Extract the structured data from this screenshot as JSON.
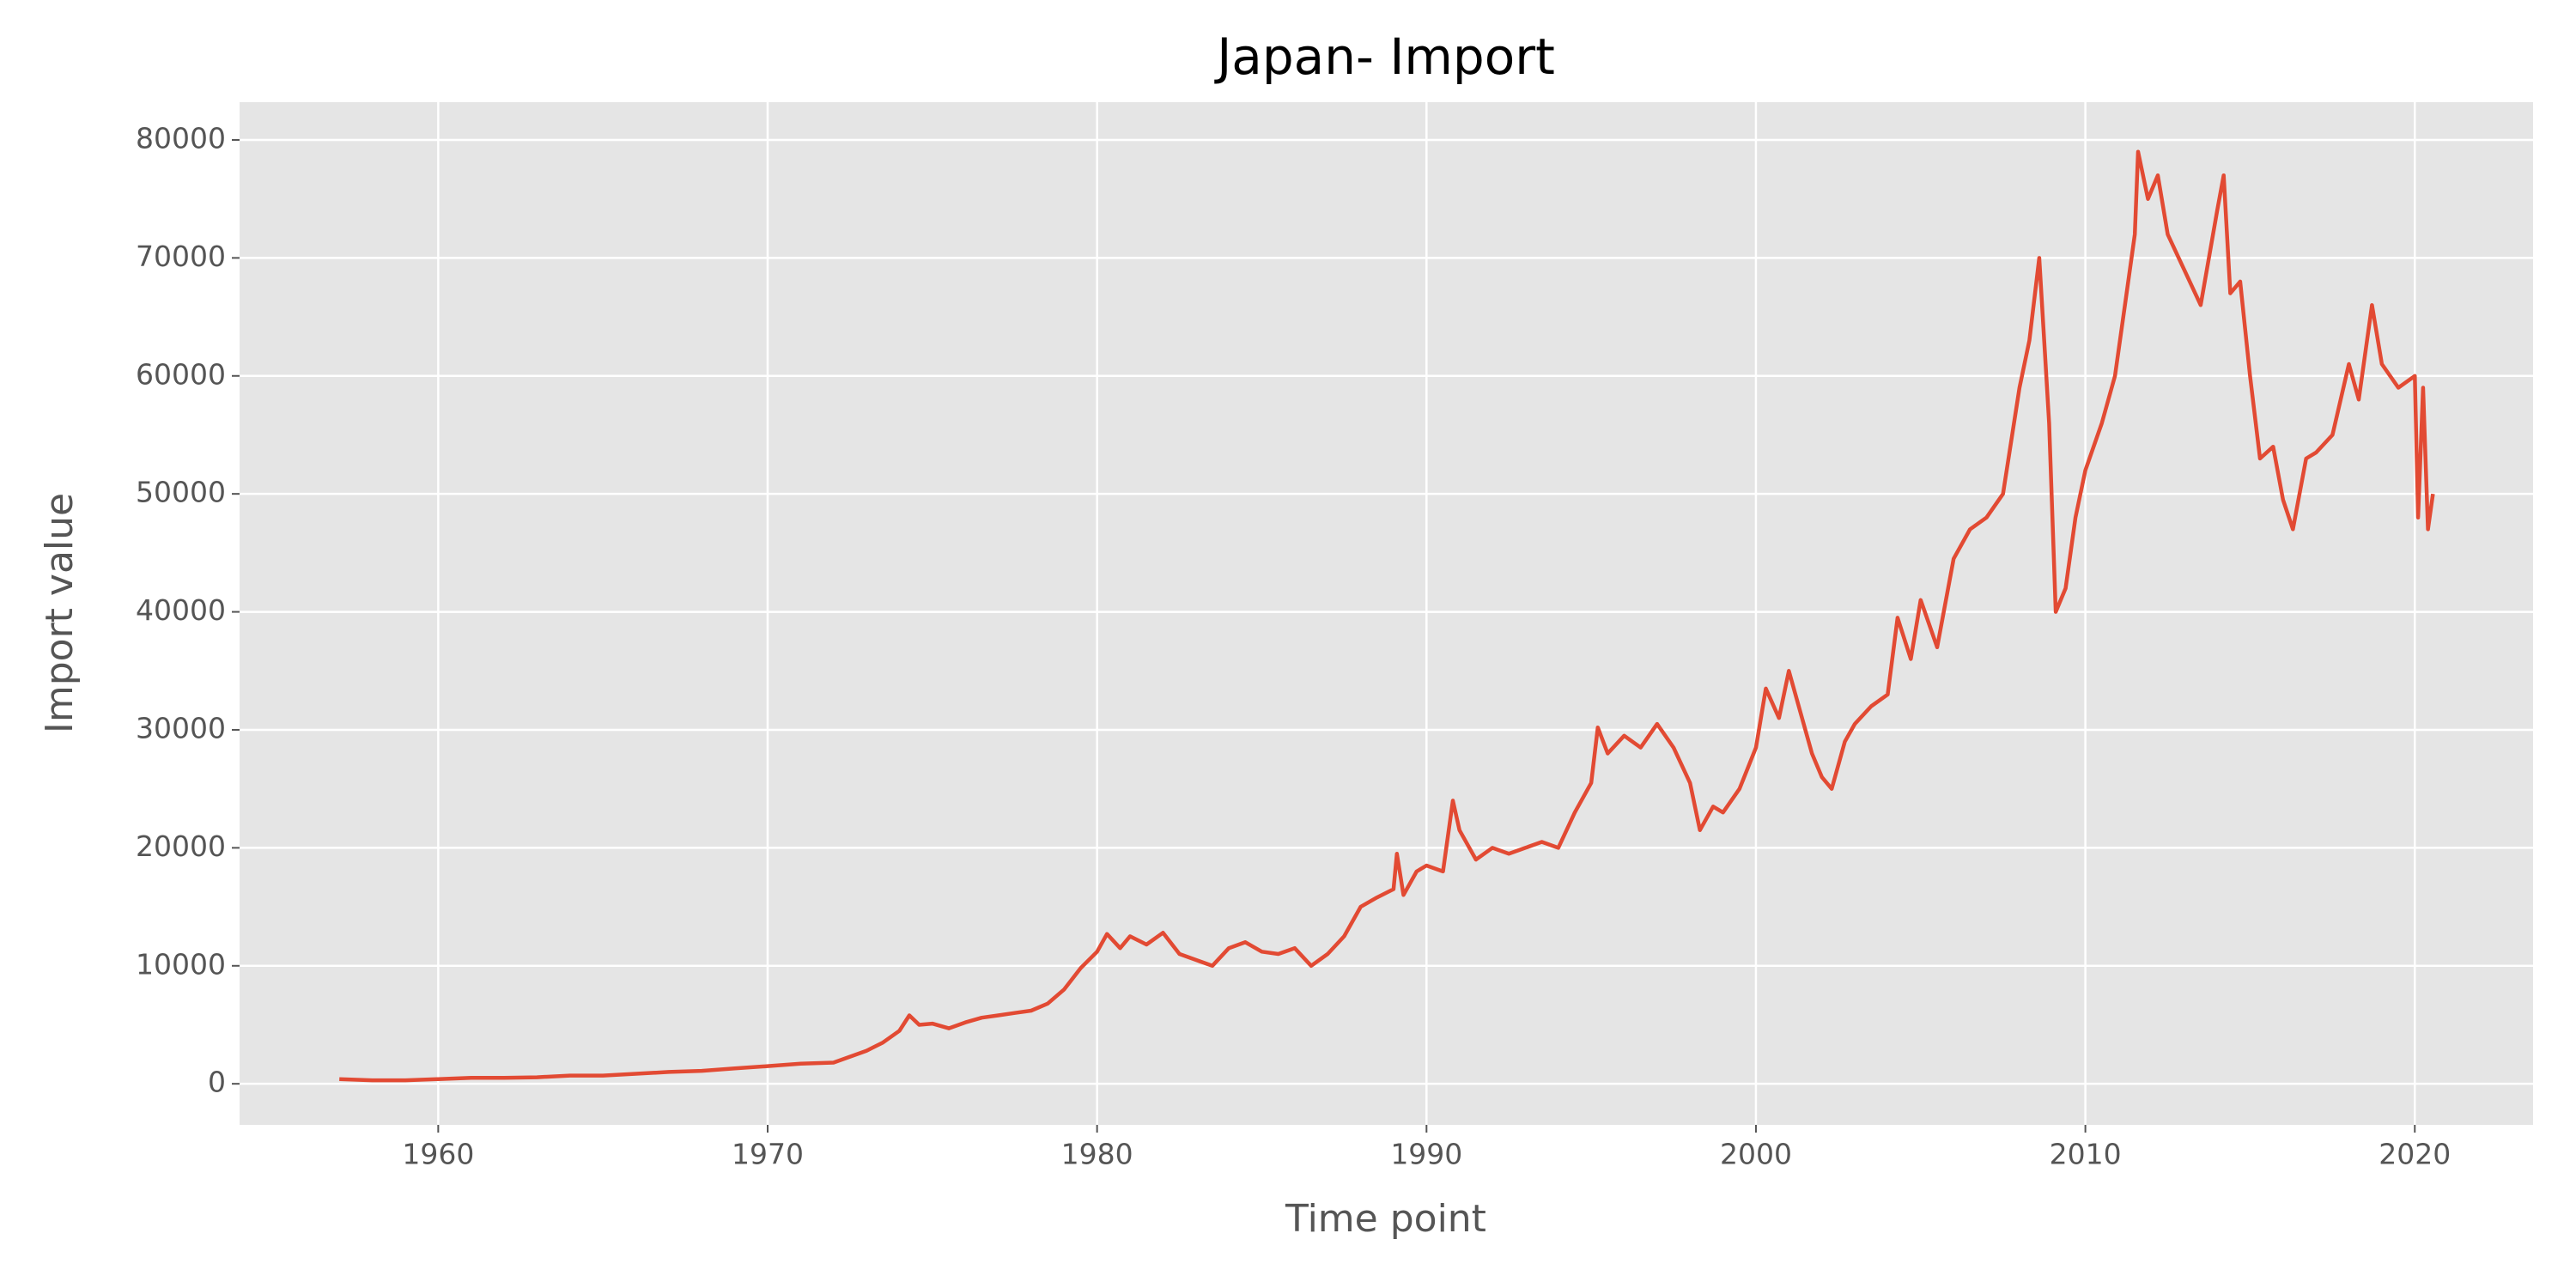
{
  "chart_data": {
    "type": "line",
    "title": "Japan- Import",
    "x_label": "Time point",
    "y_label": "Import value",
    "xlim": [
      1953.97,
      2023.59
    ],
    "ylim": [
      -3480,
      83200
    ],
    "xticks": [
      1960,
      1970,
      1980,
      1990,
      2000,
      2010,
      2020
    ],
    "yticks": [
      0,
      10000,
      20000,
      30000,
      40000,
      50000,
      60000,
      70000,
      80000
    ],
    "grid": true,
    "x": [
      1957,
      1958,
      1959,
      1960,
      1961,
      1962,
      1963,
      1964,
      1965,
      1966,
      1967,
      1968,
      1969,
      1970,
      1971,
      1972,
      1973,
      1973.5,
      1974,
      1974.3,
      1974.6,
      1975,
      1975.5,
      1976,
      1976.5,
      1977,
      1977.5,
      1978,
      1978.5,
      1979,
      1979.5,
      1980,
      1980.3,
      1980.7,
      1981,
      1981.5,
      1982,
      1982.5,
      1983,
      1983.5,
      1984,
      1984.5,
      1985,
      1985.5,
      1986,
      1986.5,
      1987,
      1987.5,
      1988,
      1988.5,
      1989,
      1989.1,
      1989.3,
      1989.7,
      1990,
      1990.5,
      1990.8,
      1991,
      1991.5,
      1992,
      1992.5,
      1993,
      1993.5,
      1994,
      1994.5,
      1995,
      1995.2,
      1995.5,
      1996,
      1996.5,
      1997,
      1997.5,
      1998,
      1998.3,
      1998.7,
      1999,
      1999.5,
      2000,
      2000.3,
      2000.7,
      2001,
      2001.3,
      2001.7,
      2002,
      2002.3,
      2002.7,
      2003,
      2003.5,
      2004,
      2004.3,
      2004.7,
      2005,
      2005.5,
      2006,
      2006.5,
      2007,
      2007.5,
      2008,
      2008.3,
      2008.6,
      2008.9,
      2009.1,
      2009.4,
      2009.7,
      2010,
      2010.5,
      2010.9,
      2011.2,
      2011.5,
      2011.6,
      2011.9,
      2012.2,
      2012.5,
      2013,
      2013.5,
      2014,
      2014.2,
      2014.4,
      2014.7,
      2015,
      2015.3,
      2015.7,
      2016,
      2016.3,
      2016.7,
      2017,
      2017.5,
      2018,
      2018.3,
      2018.7,
      2019,
      2019.5,
      2020,
      2020.1,
      2020.25,
      2020.4,
      2020.55
    ],
    "series": [
      {
        "name": "Import",
        "color": "#e24a33",
        "values": [
          400,
          300,
          300,
          400,
          500,
          500,
          550,
          700,
          700,
          850,
          1000,
          1100,
          1300,
          1500,
          1700,
          1800,
          2800,
          3500,
          4500,
          5800,
          5000,
          5100,
          4700,
          5200,
          5600,
          5800,
          6000,
          6200,
          6800,
          8000,
          9800,
          11200,
          12700,
          11500,
          12500,
          11800,
          12800,
          11000,
          10500,
          10000,
          11500,
          12000,
          11200,
          11000,
          11500,
          10000,
          11000,
          12500,
          15000,
          15800,
          16500,
          19500,
          16000,
          18000,
          18500,
          18000,
          24000,
          21500,
          19000,
          20000,
          19500,
          20000,
          20500,
          20000,
          23000,
          25500,
          30200,
          28000,
          29500,
          28500,
          30500,
          28500,
          25500,
          21500,
          23500,
          23000,
          25000,
          28500,
          33500,
          31000,
          35000,
          32000,
          28000,
          26000,
          25000,
          29000,
          30500,
          32000,
          33000,
          39500,
          36000,
          41000,
          37000,
          44500,
          47000,
          48000,
          50000,
          59000,
          63000,
          70000,
          56000,
          40000,
          42000,
          48000,
          52000,
          56000,
          60000,
          66000,
          72000,
          79000,
          75000,
          77000,
          72000,
          69000,
          66000,
          74000,
          77000,
          67000,
          68000,
          60000,
          53000,
          54000,
          49500,
          47000,
          53000,
          53500,
          55000,
          61000,
          58000,
          66000,
          61000,
          59000,
          60000,
          48000,
          59000,
          47000,
          50000
        ]
      }
    ]
  }
}
